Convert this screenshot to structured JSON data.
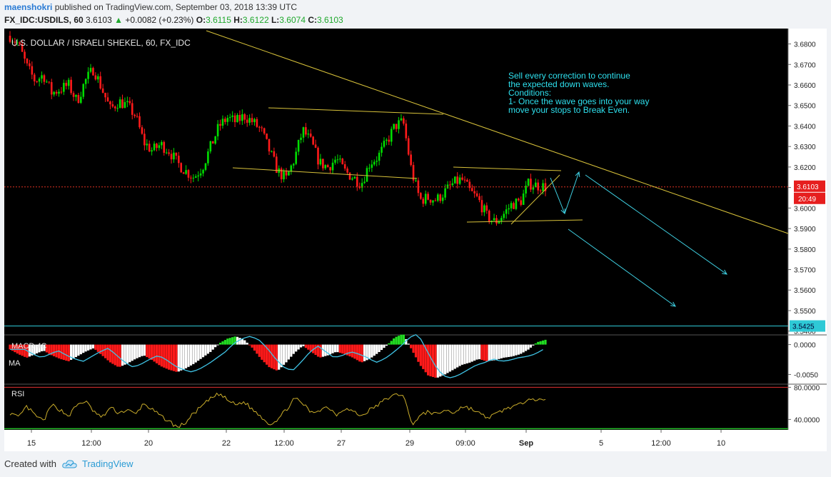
{
  "header": {
    "author": "maenshokri",
    "published_text": "published on TradingView.com, September 03, 2018 13:39 UTC",
    "symbol": "FX_IDC:USDILS, 60",
    "last": "3.6103",
    "change_arrow": "▲",
    "change": "+0.0082 (+0.23%)",
    "o_label": "O:",
    "o_value": "3.6115",
    "h_label": "H:",
    "h_value": "3.6122",
    "l_label": "L:",
    "l_value": "3.6074",
    "c_label": "C:",
    "c_value": "3.6103"
  },
  "chart_data": {
    "type": "candlestick",
    "title": "U.S. DOLLAR / ISRAELI SHEKEL, 60, FX_IDC",
    "annotation": [
      "Sell every correction to continue",
      "the expected down waves.",
      "Conditions:",
      "1- Once the wave goes into your way",
      "move your stops to Break Even."
    ],
    "ylim": [
      3.5385,
      3.6875
    ],
    "y_ticks": [
      "3.6800",
      "3.6700",
      "3.6600",
      "3.6500",
      "3.6400",
      "3.6300",
      "3.6200",
      "3.6100",
      "3.6000",
      "3.5900",
      "3.5800",
      "3.5700",
      "3.5600",
      "3.5500",
      "3.5400"
    ],
    "x_ticks": [
      "15",
      "12:00",
      "20",
      "22",
      "12:00",
      "27",
      "29",
      "09:00",
      "Sep",
      "5",
      "12:00",
      "10"
    ],
    "price_label": "3.6103",
    "time_label": "20:49",
    "level_label": "3.5425",
    "level_value": 3.5425,
    "close_price_line": 3.6103,
    "price_path": [
      3.684,
      3.68,
      3.669,
      3.662,
      3.665,
      3.656,
      3.658,
      3.66,
      3.652,
      3.662,
      3.668,
      3.658,
      3.648,
      3.652,
      3.65,
      3.645,
      3.632,
      3.628,
      3.631,
      3.628,
      3.622,
      3.618,
      3.615,
      3.62,
      3.63,
      3.64,
      3.644,
      3.642,
      3.645,
      3.642,
      3.638,
      3.628,
      3.618,
      3.614,
      3.624,
      3.638,
      3.632,
      3.622,
      3.62,
      3.624,
      3.618,
      3.615,
      3.612,
      3.622,
      3.625,
      3.632,
      3.64,
      3.642,
      3.618,
      3.604,
      3.605,
      3.604,
      3.608,
      3.612,
      3.614,
      3.608,
      3.604,
      3.596,
      3.593,
      3.597,
      3.602,
      3.603,
      3.612,
      3.611,
      3.6103
    ],
    "macd": {
      "label": "MACD 4C",
      "ma_label": "MA",
      "ylim": [
        -0.0065,
        0.0015
      ],
      "y_ticks": [
        "0.0000",
        "-0.0050"
      ],
      "values": [
        -0.0008,
        -0.0016,
        -0.0022,
        -0.0016,
        -0.001,
        -0.0018,
        -0.0024,
        -0.0028,
        -0.002,
        -0.0012,
        -0.0006,
        -0.0018,
        -0.003,
        -0.0038,
        -0.0032,
        -0.0024,
        -0.0018,
        -0.0026,
        -0.0036,
        -0.0042,
        -0.0046,
        -0.004,
        -0.0032,
        -0.0022,
        -0.0012,
        0.0002,
        0.001,
        0.0014,
        0.0008,
        -0.0006,
        -0.0024,
        -0.0038,
        -0.0044,
        -0.003,
        -0.0014,
        -0.0002,
        -0.0012,
        -0.0022,
        -0.0018,
        -0.0012,
        -0.0016,
        -0.0022,
        -0.003,
        -0.0024,
        -0.0014,
        -0.0002,
        0.0012,
        0.0018,
        -0.0008,
        -0.0034,
        -0.0052,
        -0.0056,
        -0.005,
        -0.0042,
        -0.0034,
        -0.003,
        -0.0024,
        -0.0028,
        -0.0026,
        -0.0022,
        -0.002,
        -0.0016,
        -0.0008,
        0.0004,
        0.0008
      ]
    },
    "rsi": {
      "label": "RSI",
      "ylim": [
        27,
        83
      ],
      "y_ticks": [
        "80.0000",
        "40.0000"
      ],
      "values": [
        48,
        42,
        56,
        45,
        38,
        58,
        52,
        44,
        58,
        63,
        50,
        42,
        55,
        48,
        52,
        46,
        60,
        52,
        44,
        38,
        30,
        36,
        48,
        57,
        66,
        72,
        64,
        58,
        62,
        52,
        44,
        34,
        40,
        52,
        66,
        60,
        48,
        52,
        56,
        46,
        54,
        50,
        44,
        52,
        58,
        66,
        70,
        72,
        34,
        44,
        50,
        46,
        52,
        48,
        56,
        54,
        48,
        42,
        46,
        52,
        56,
        58,
        68,
        64,
        63
      ]
    }
  },
  "footer": {
    "created_with": "Created with",
    "brand": "TradingView"
  }
}
